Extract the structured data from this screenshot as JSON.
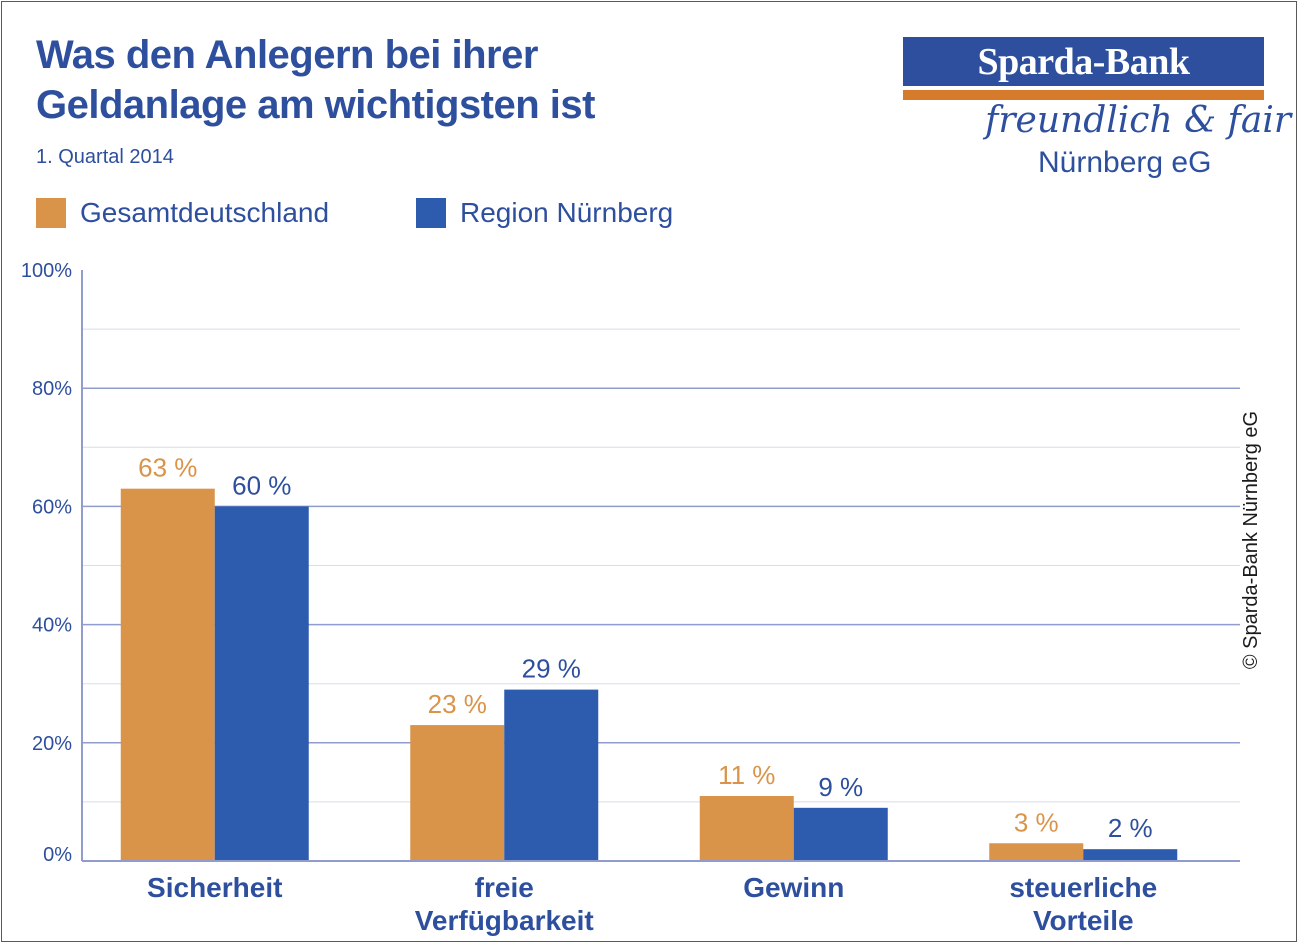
{
  "header": {
    "title_line1": "Was den Anlegern bei ihrer",
    "title_line2": "Geldanlage am wichtigsten ist",
    "subtitle": "1. Quartal 2014"
  },
  "logo": {
    "brand": "Sparda-Bank",
    "slogan": "freundlich & fair",
    "city": "Nürnberg eG"
  },
  "copyright": "© Sparda-Bank Nürnberg eG",
  "colors": {
    "accent": "#2d4f9e",
    "orange": "#d9944a",
    "blue": "#2d5bad",
    "grid": "#8f9ccd"
  },
  "chart_data": {
    "type": "bar",
    "title": "Was den Anlegern bei ihrer Geldanlage am wichtigsten ist",
    "subtitle": "1. Quartal 2014",
    "categories": [
      [
        "Sicherheit"
      ],
      [
        "freie",
        "Verfügbarkeit"
      ],
      [
        "Gewinn"
      ],
      [
        "steuerliche",
        "Vorteile"
      ]
    ],
    "series": [
      {
        "name": "Gesamtdeutschland",
        "color": "#d9944a",
        "values": [
          63,
          23,
          11,
          3
        ],
        "labels": [
          "63 %",
          "23 %",
          "11 %",
          "3 %"
        ]
      },
      {
        "name": "Region Nürnberg",
        "color": "#2d5bad",
        "values": [
          60,
          29,
          9,
          2
        ],
        "labels": [
          "60 %",
          "29 %",
          "9 %",
          "2 %"
        ]
      }
    ],
    "ylim": [
      0,
      100
    ],
    "yticks": [
      0,
      20,
      40,
      60,
      80,
      100
    ],
    "ytick_labels": [
      "0%",
      "20%",
      "40%",
      "60%",
      "80%",
      "100%"
    ],
    "minor_gridlines": [
      10,
      30,
      50,
      70,
      90
    ],
    "grid": true,
    "legend_position": "top-left"
  }
}
